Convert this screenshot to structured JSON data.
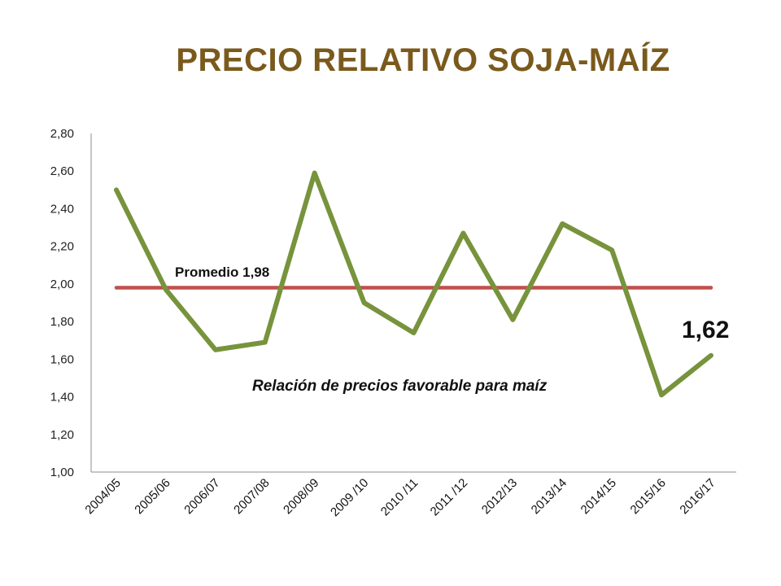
{
  "chart_data": {
    "type": "line",
    "title": "PRECIO RELATIVO SOJA-MAÍZ",
    "categories": [
      "2004/05",
      "2005/06",
      "2006/07",
      "2007/08",
      "2008/09",
      "2009 /10",
      "2010 /11",
      "2011 /12",
      "2012/13",
      "2013/14",
      "2014/15",
      "2015/16",
      "2016/17"
    ],
    "series": [
      {
        "name": "",
        "values": [
          2.5,
          1.97,
          1.65,
          1.69,
          2.59,
          1.9,
          1.74,
          2.27,
          1.81,
          2.32,
          2.18,
          1.41,
          1.62
        ],
        "color": "#77933c"
      },
      {
        "name": "",
        "values": [
          1.98,
          1.98,
          1.98,
          1.98,
          1.98,
          1.98,
          1.98,
          1.98,
          1.98,
          1.98,
          1.98,
          1.98,
          1.98
        ],
        "color": "#c0504d"
      }
    ],
    "yticks": [
      "1,00",
      "1,20",
      "1,40",
      "1,60",
      "1,80",
      "2,00",
      "2,20",
      "2,40",
      "2,60",
      "2,80"
    ],
    "ylim": [
      1.0,
      2.8
    ],
    "grid": false,
    "annotations": {
      "average": "Promedio 1,98",
      "note": "Relación de precios favorable para maíz",
      "last_value": "1,62"
    }
  }
}
